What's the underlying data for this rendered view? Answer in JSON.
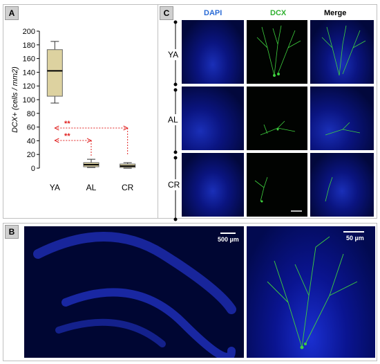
{
  "panel_a": {
    "label": "A",
    "chart_data": {
      "type": "box",
      "ylabel": "DCX+ (cells / mm2)",
      "ylim": [
        0,
        200
      ],
      "yticks": [
        0,
        20,
        40,
        60,
        80,
        100,
        120,
        140,
        160,
        180,
        200
      ],
      "categories": [
        "YA",
        "AL",
        "CR"
      ],
      "boxes": [
        {
          "category": "YA",
          "min": 95,
          "q1": 105,
          "median": 142,
          "q3": 173,
          "max": 185
        },
        {
          "category": "AL",
          "min": 1,
          "q1": 2,
          "median": 5,
          "q3": 8,
          "max": 13
        },
        {
          "category": "CR",
          "min": 0,
          "q1": 1,
          "median": 3,
          "q3": 6,
          "max": 8
        }
      ],
      "significance": [
        {
          "from": "YA",
          "to": "CR",
          "label": "**"
        },
        {
          "from": "YA",
          "to": "AL",
          "label": "**"
        }
      ],
      "colors": {
        "box": "#ddd2a0",
        "median": "#000000",
        "whisker": "#333333",
        "sig": "#e0201f"
      }
    }
  },
  "panel_c": {
    "label": "C",
    "headers": [
      {
        "text": "DAPI",
        "color": "#2a6bd6"
      },
      {
        "text": "DCX",
        "color": "#2fb02f"
      },
      {
        "text": "Merge",
        "color": "#000000"
      }
    ],
    "rows": [
      "YA",
      "AL",
      "CR"
    ]
  },
  "panel_b": {
    "label": "B",
    "scale_left": "500 µm",
    "scale_right": "50 µm"
  }
}
